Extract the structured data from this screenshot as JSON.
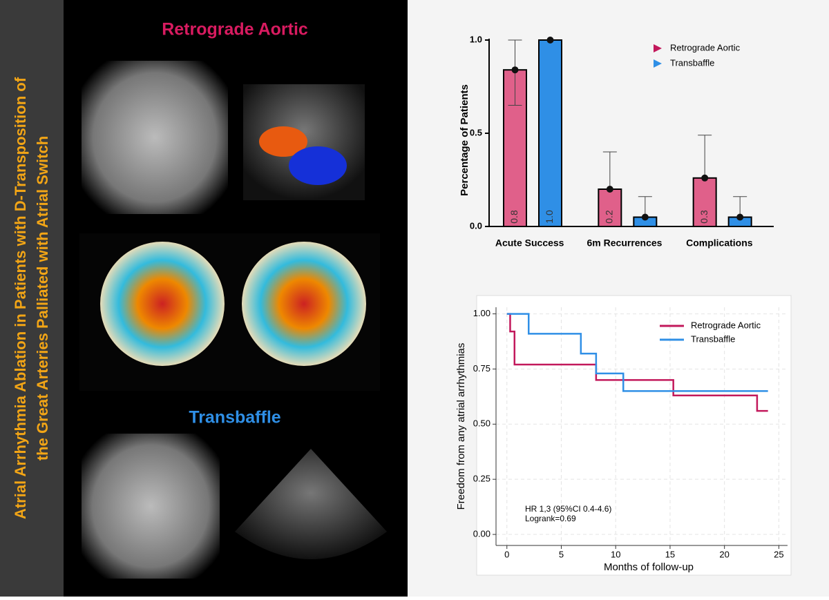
{
  "title_lines": [
    "Atrial Arrhythmia Ablation in Patients with D-Transposition of",
    "the Great Arteries Palliated with Atrial Switch"
  ],
  "panel_labels": [
    {
      "text": "Retrograde Aortic",
      "color": "#d81b60"
    },
    {
      "text": "Transbaffle",
      "color": "#2f8fe6"
    }
  ],
  "chart_data": [
    {
      "type": "bar",
      "ylabel": "Percentage of Patients",
      "categories": [
        "Acute Success",
        "6m Recurrences",
        "Complications"
      ],
      "ylim": [
        0,
        1
      ],
      "yticks": [
        {
          "value": 0,
          "label": "0.0"
        },
        {
          "value": 0.5,
          "label": "0.5"
        },
        {
          "value": 1,
          "label": "1.0"
        }
      ],
      "legend": "top-right",
      "series": [
        {
          "name": "Retrograde Aortic",
          "color": "#e0608a",
          "marker_color": "#c2185b",
          "values": [
            0.84,
            0.2,
            0.26
          ],
          "value_labels": [
            "0.8",
            "0.2",
            "0.3"
          ],
          "ci_lower": [
            0.65,
            null,
            null
          ],
          "ci_upper": [
            1.0,
            0.4,
            0.49
          ]
        },
        {
          "name": "Transbaffle",
          "color": "#2f8fe6",
          "marker_color": "#2f8fe6",
          "values": [
            1.0,
            0.05,
            0.05
          ],
          "value_labels": [
            "1.0",
            null,
            null
          ],
          "ci_lower": [
            null,
            null,
            null
          ],
          "ci_upper": [
            null,
            0.16,
            0.16
          ]
        }
      ]
    },
    {
      "type": "step",
      "xlabel": "Months of follow-up",
      "ylabel": "Freedom from any atrial arrhythmias",
      "xlim": [
        -1,
        25.8
      ],
      "ylim": [
        -0.05,
        1.03
      ],
      "xticks": [
        0,
        5,
        10,
        15,
        20,
        25
      ],
      "yticks": [
        {
          "value": 0,
          "label": "0.00"
        },
        {
          "value": 0.25,
          "label": "0.25"
        },
        {
          "value": 0.5,
          "label": "0.50"
        },
        {
          "value": 0.75,
          "label": "0.75"
        },
        {
          "value": 1,
          "label": "1.00"
        }
      ],
      "grid": true,
      "legend": "top-right",
      "annotations": [
        "HR 1,3 (95%CI 0.4-4.6)",
        "Logrank=0.69"
      ],
      "series": [
        {
          "name": "Retrograde Aortic",
          "color": "#c2185b",
          "x": [
            0,
            0.3,
            0.7,
            8.2,
            15.3,
            23,
            24
          ],
          "values": [
            1,
            0.92,
            0.77,
            0.7,
            0.63,
            0.56,
            0.56
          ]
        },
        {
          "name": "Transbaffle",
          "color": "#2f8fe6",
          "x": [
            0,
            2,
            6.8,
            8.2,
            10.7,
            24
          ],
          "values": [
            1,
            0.91,
            0.82,
            0.73,
            0.65,
            0.65
          ]
        }
      ]
    }
  ]
}
